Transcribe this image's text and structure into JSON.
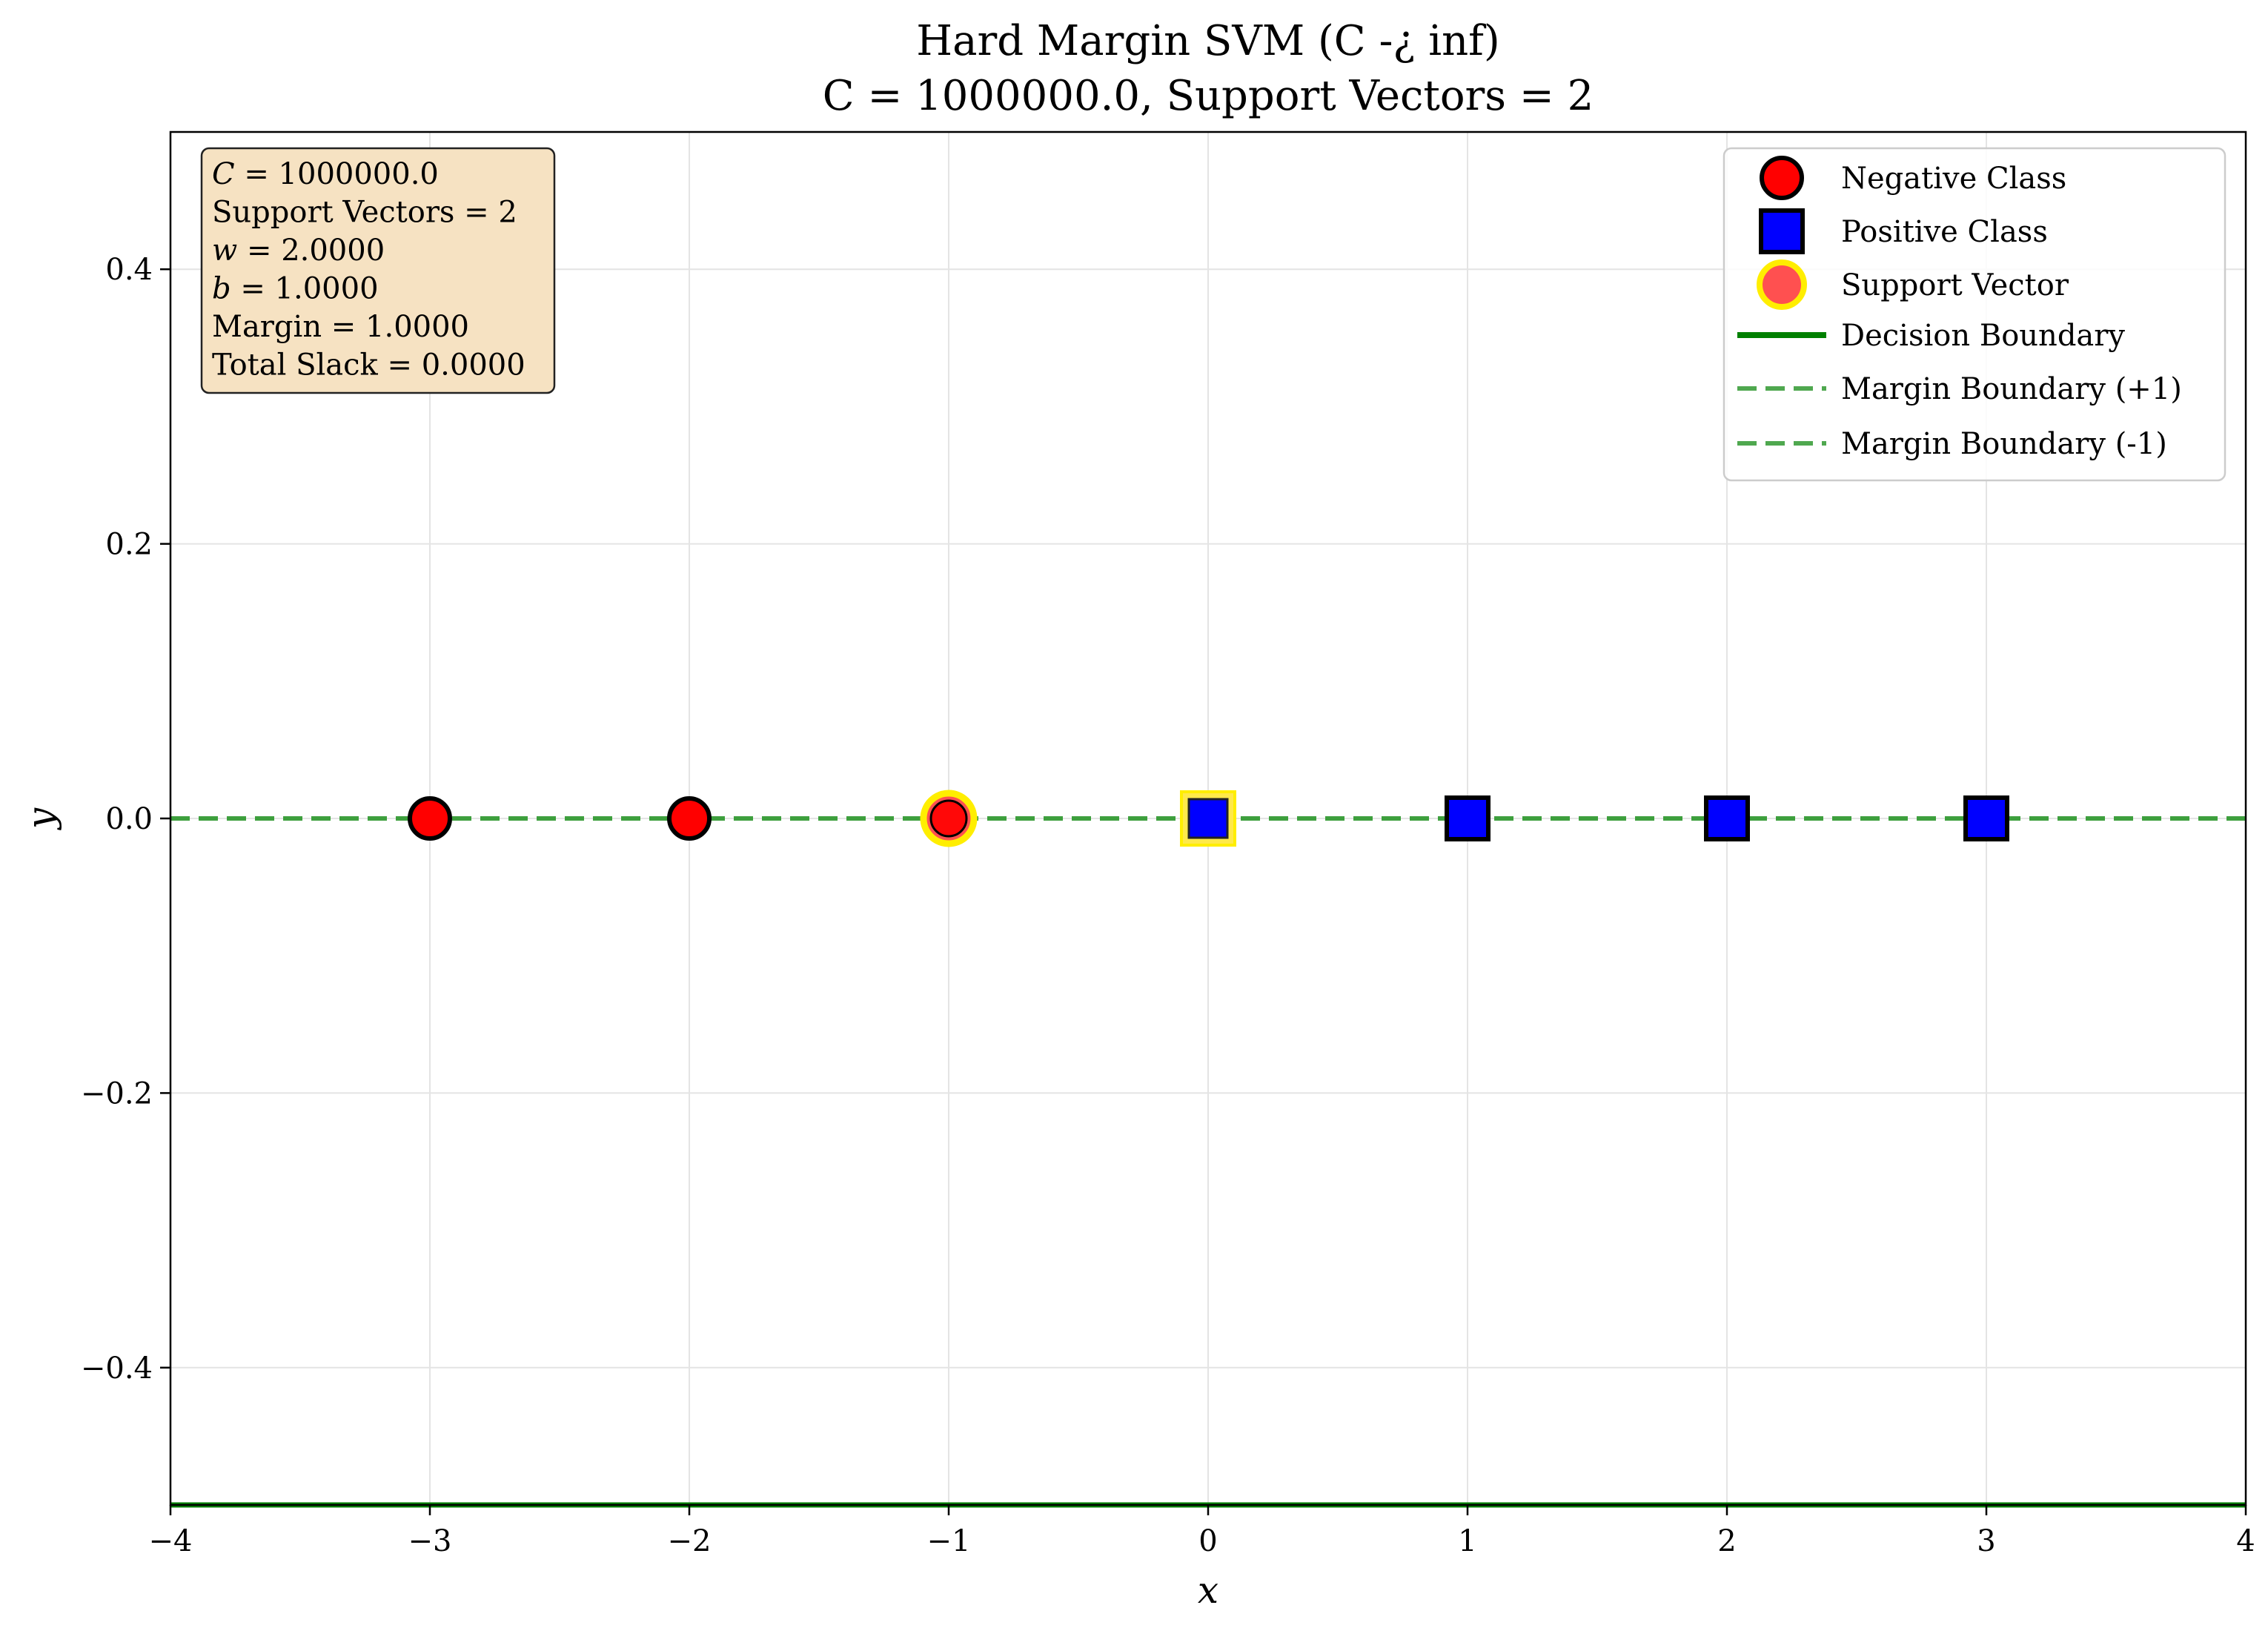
{
  "chart_data": {
    "type": "scatter",
    "title": [
      "Hard Margin SVM (C -¿ inf)",
      "C = 1000000.0, Support Vectors = 2"
    ],
    "xlabel": "x",
    "ylabel": "y",
    "xlim": [
      -4,
      4
    ],
    "ylim": [
      -0.5,
      0.5
    ],
    "xticks": [
      -4,
      -3,
      -2,
      -1,
      0,
      1,
      2,
      3,
      4
    ],
    "xtick_labels": [
      "−4",
      "−3",
      "−2",
      "−1",
      "0",
      "1",
      "2",
      "3",
      "4"
    ],
    "yticks": [
      0.4,
      0.2,
      0.0,
      -0.2,
      -0.4
    ],
    "ytick_labels": [
      "0.4",
      "0.2",
      "0.0",
      "−0.2",
      "−0.4"
    ],
    "grid": true,
    "legend_position": "top-right",
    "series": [
      {
        "name": "Negative Class",
        "marker": "circle",
        "color": "#ff0000",
        "x": [
          -3,
          -2,
          -1
        ],
        "y": [
          0,
          0,
          0
        ]
      },
      {
        "name": "Positive Class",
        "marker": "square",
        "color": "#0000ff",
        "x": [
          0,
          1,
          2,
          3
        ],
        "y": [
          0,
          0,
          0,
          0
        ]
      },
      {
        "name": "Support Vector",
        "marker": "circle-highlight",
        "color": "#ffee00",
        "x": [
          -1,
          0
        ],
        "y": [
          0,
          0
        ]
      }
    ],
    "lines": [
      {
        "name": "Decision Boundary",
        "style": "solid",
        "color": "#008000",
        "y": -0.5
      },
      {
        "name": "Margin Boundary (+1)",
        "style": "dashed",
        "color": "#3c9e3c",
        "y": 0.0
      },
      {
        "name": "Margin Boundary (-1)",
        "style": "dashed",
        "color": "#3c9e3c",
        "y": 0.0
      }
    ],
    "info_box": {
      "lines": [
        {
          "var": "C",
          "text": " = 1000000.0"
        },
        {
          "var": "",
          "text": "Support Vectors = 2"
        },
        {
          "var": "w",
          "text": " = 2.0000"
        },
        {
          "var": "b",
          "text": " = 1.0000"
        },
        {
          "var": "",
          "text": "Margin = 1.0000"
        },
        {
          "var": "",
          "text": "Total Slack = 0.0000"
        }
      ]
    }
  }
}
